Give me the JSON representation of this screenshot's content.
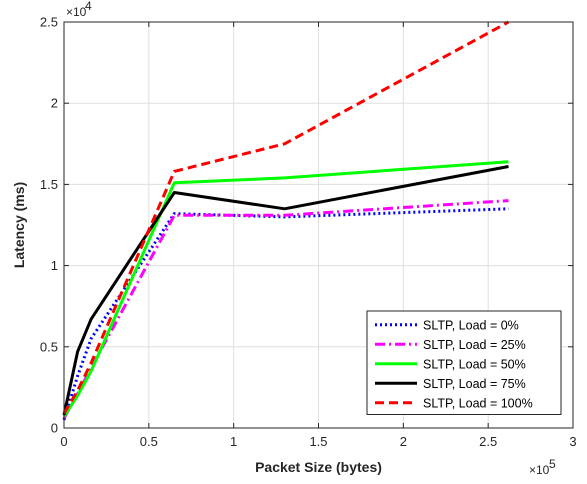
{
  "chart_data": {
    "type": "line",
    "title": "",
    "xlabel": "Packet Size (bytes)",
    "ylabel": "Latency (ms)",
    "xlim": [
      0,
      300000
    ],
    "ylim": [
      0,
      25000
    ],
    "x_ticks": [
      0,
      50000,
      100000,
      150000,
      200000,
      250000,
      300000
    ],
    "y_ticks": [
      0,
      5000,
      10000,
      15000,
      20000,
      25000
    ],
    "x_tick_labels": [
      "0",
      "0.5",
      "1",
      "1.5",
      "2",
      "2.5",
      "3"
    ],
    "y_tick_labels": [
      "0",
      "0.5",
      "1",
      "1.5",
      "2",
      "2.5"
    ],
    "x_exponent": {
      "base": "×10",
      "power": "5"
    },
    "y_exponent": {
      "base": "×10",
      "power": "4"
    },
    "grid": true,
    "legend_position": "bottom-right",
    "series": [
      {
        "name": "SLTP, Load = 0%",
        "color": "#0000ff",
        "dash": "dotted",
        "x": [
          0,
          8000,
          16000,
          65000,
          130000,
          262000
        ],
        "y": [
          500,
          3200,
          5500,
          13200,
          13000,
          13500
        ]
      },
      {
        "name": "SLTP, Load = 25%",
        "color": "#ff00ff",
        "dash": "dashdot",
        "x": [
          0,
          8000,
          16000,
          65000,
          130000,
          262000
        ],
        "y": [
          600,
          2100,
          3700,
          13100,
          13100,
          14000
        ]
      },
      {
        "name": "SLTP, Load = 50%",
        "color": "#00ff00",
        "dash": "solid",
        "x": [
          0,
          8000,
          16000,
          65000,
          130000,
          262000
        ],
        "y": [
          700,
          2000,
          3500,
          15100,
          15400,
          16400
        ]
      },
      {
        "name": "SLTP, Load = 75%",
        "color": "#000000",
        "dash": "solid",
        "x": [
          0,
          8000,
          16000,
          65000,
          130000,
          262000
        ],
        "y": [
          800,
          4700,
          6700,
          14500,
          13500,
          16100
        ]
      },
      {
        "name": "SLTP, Load = 100%",
        "color": "#ff0000",
        "dash": "dashed",
        "x": [
          0,
          8000,
          16000,
          65000,
          130000,
          262000
        ],
        "y": [
          900,
          2300,
          4000,
          15800,
          17500,
          25000
        ]
      }
    ]
  }
}
